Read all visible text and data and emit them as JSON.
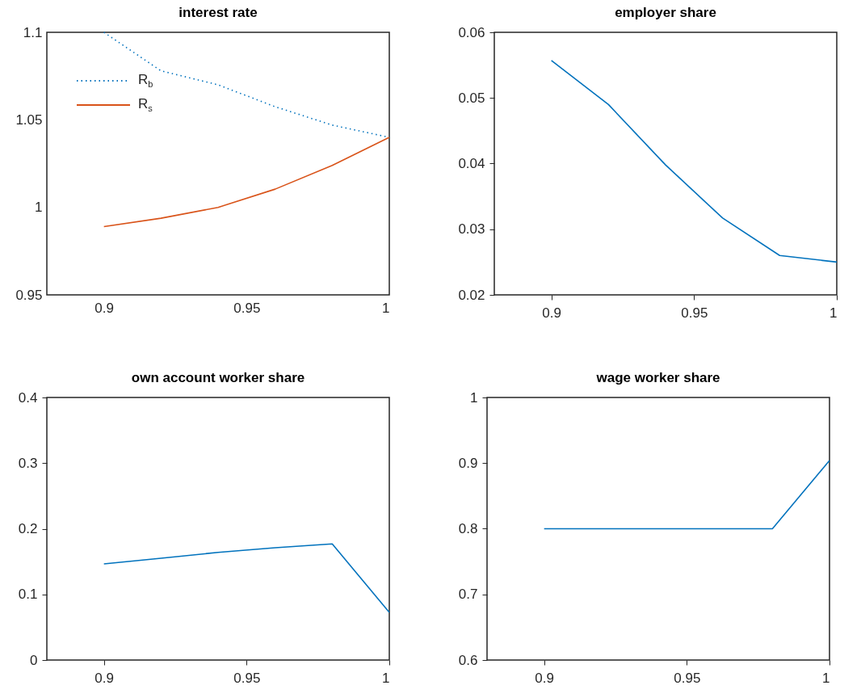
{
  "chart_data": [
    {
      "type": "line",
      "title": "interest rate",
      "x": [
        0.9,
        0.92,
        0.94,
        0.96,
        0.98,
        1.0
      ],
      "xlim": [
        0.88,
        1
      ],
      "xticks": [
        0.9,
        0.95,
        1
      ],
      "ylim": [
        0.95,
        1.1
      ],
      "yticks": [
        0.95,
        1,
        1.05,
        1.1
      ],
      "legend": "top left",
      "series": [
        {
          "name": "R$_{b}$",
          "color": "#0072bd",
          "line_style": "dotted",
          "values": [
            1.1,
            1.078,
            1.07,
            1.0575,
            1.047,
            1.04
          ]
        },
        {
          "name": "R$_{s}$",
          "color": "#d95319",
          "line_style": "solid",
          "values": [
            0.989,
            0.9938,
            1.0,
            1.0104,
            1.024,
            1.04
          ]
        }
      ]
    },
    {
      "type": "line",
      "title": "employer share",
      "x": [
        0.9,
        0.92,
        0.94,
        0.96,
        0.98,
        1.0
      ],
      "xlim": [
        0.88,
        1
      ],
      "xticks": [
        0.9,
        0.95,
        1
      ],
      "ylim": [
        0.02,
        0.06
      ],
      "yticks": [
        0.02,
        0.03,
        0.04,
        0.05,
        0.06
      ],
      "series": [
        {
          "color": "#0072bd",
          "values": [
            0.0557,
            0.049,
            0.0398,
            0.0317,
            0.026,
            0.025
          ]
        }
      ]
    },
    {
      "type": "line",
      "title": "own account worker share",
      "x": [
        0.9,
        0.92,
        0.94,
        0.96,
        0.98,
        1.0
      ],
      "xlim": [
        0.88,
        1
      ],
      "xticks": [
        0.9,
        0.95,
        1
      ],
      "ylim": [
        0,
        0.4
      ],
      "yticks": [
        0,
        0.1,
        0.2,
        0.3,
        0.4
      ],
      "series": [
        {
          "color": "#0072bd",
          "values": [
            0.1465,
            0.155,
            0.164,
            0.171,
            0.177,
            0.0726
          ]
        }
      ]
    },
    {
      "type": "line",
      "title": "wage worker share",
      "x": [
        0.9,
        0.92,
        0.94,
        0.96,
        0.98,
        1.0
      ],
      "xlim": [
        0.88,
        1
      ],
      "xticks": [
        0.9,
        0.95,
        1
      ],
      "ylim": [
        0.6,
        1
      ],
      "yticks": [
        0.6,
        0.7,
        0.8,
        0.9,
        1
      ],
      "series": [
        {
          "color": "#0072bd",
          "values": [
            0.8,
            0.8,
            0.8,
            0.8,
            0.8,
            0.904
          ]
        }
      ]
    }
  ]
}
